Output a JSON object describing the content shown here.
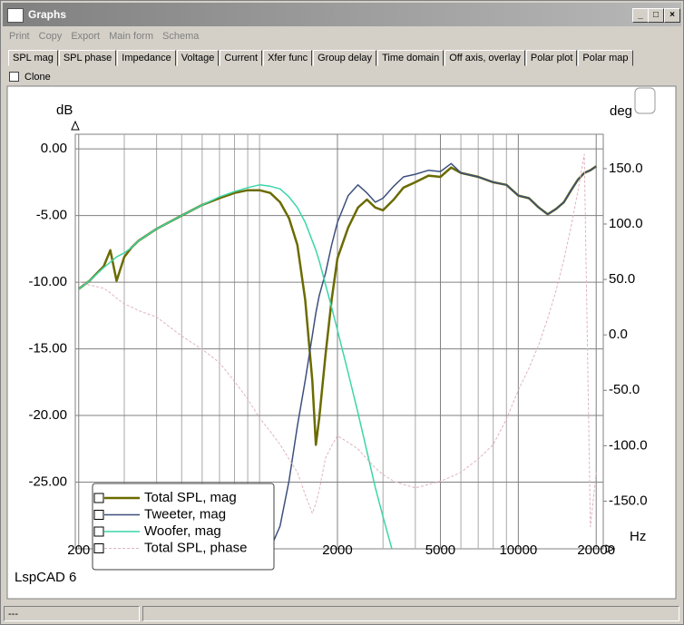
{
  "window": {
    "title": "Graphs",
    "menu": [
      "Print",
      "Copy",
      "Export",
      "Main form",
      "Schema"
    ],
    "tabs": [
      "SPL mag",
      "SPL phase",
      "Impedance",
      "Voltage",
      "Current",
      "Xfer func",
      "Group delay",
      "Time domain",
      "Off axis, overlay",
      "Polar plot",
      "Polar map"
    ],
    "clone": "Clone",
    "footer": "LspCAD 6",
    "status": "---"
  },
  "chart_data": {
    "type": "line",
    "ylabel": "dB",
    "y2label": "deg",
    "xlabel": "Hz",
    "xscale": "log",
    "xlim": [
      194,
      21300
    ],
    "xticks": [
      200,
      2000,
      5000,
      10000,
      20000
    ],
    "x_minor_grid": [
      300,
      400,
      500,
      600,
      700,
      800,
      900,
      1000,
      3000,
      4000,
      6000,
      7000,
      8000,
      9000
    ],
    "ylim": [
      -30,
      1.1
    ],
    "yticks": [
      {
        "value": 0,
        "label": "0.00"
      },
      {
        "value": -5,
        "label": "-5.00"
      },
      {
        "value": -10,
        "label": "-10.00"
      },
      {
        "value": -15,
        "label": "-15.00"
      },
      {
        "value": -20,
        "label": "-20.00"
      },
      {
        "value": -25,
        "label": "-25.00"
      }
    ],
    "y2lim": [
      -193,
      181
    ],
    "y2ticks": [
      {
        "value": 150,
        "label": "150.0"
      },
      {
        "value": 100,
        "label": "100.0"
      },
      {
        "value": 50,
        "label": "50.0"
      },
      {
        "value": 0,
        "label": "0.0"
      },
      {
        "value": -50,
        "label": "-50.0"
      },
      {
        "value": -100,
        "label": "-100.0"
      },
      {
        "value": -150,
        "label": "-150.0"
      }
    ],
    "grid": true,
    "legend": "lower left",
    "x": [
      200,
      220,
      250,
      265,
      280,
      300,
      320,
      340,
      400,
      500,
      600,
      700,
      800,
      900,
      1000,
      1100,
      1200,
      1300,
      1400,
      1500,
      1600,
      1650,
      1700,
      1800,
      1900,
      2000,
      2200,
      2400,
      2600,
      2800,
      3000,
      3300,
      3600,
      4000,
      4500,
      5000,
      5500,
      6000,
      7000,
      8000,
      9000,
      10000,
      11000,
      12000,
      13000,
      14000,
      15000,
      16000,
      17000,
      18000,
      19000,
      20000
    ],
    "series": [
      {
        "name": "Total SPL, mag",
        "color": "#6b6b00",
        "width": 2.5,
        "values": [
          -10.5,
          -9.9,
          -8.8,
          -7.6,
          -9.9,
          -8.1,
          -7.4,
          -6.9,
          -6.0,
          -5.0,
          -4.2,
          -3.7,
          -3.3,
          -3.1,
          -3.1,
          -3.3,
          -4.0,
          -5.2,
          -7.2,
          -11.3,
          -17.4,
          -22.2,
          -20.2,
          -15.4,
          -11.3,
          -8.2,
          -5.9,
          -4.4,
          -3.8,
          -4.4,
          -4.6,
          -3.8,
          -2.9,
          -2.5,
          -2.0,
          -2.1,
          -1.4,
          -1.8,
          -2.1,
          -2.5,
          -2.7,
          -3.5,
          -3.7,
          -4.4,
          -4.9,
          -4.5,
          -4.0,
          -3.1,
          -2.3,
          -1.8,
          -1.6,
          -1.3
        ]
      },
      {
        "name": "Tweeter, mag",
        "color": "#3d4f7c",
        "width": 1.5,
        "values": [
          null,
          null,
          null,
          null,
          null,
          null,
          null,
          null,
          null,
          null,
          null,
          null,
          null,
          null,
          null,
          -30.0,
          -28.3,
          -24.9,
          -20.8,
          -17.4,
          -14.0,
          -12.3,
          -11.0,
          -9.3,
          -7.2,
          -5.5,
          -3.5,
          -2.7,
          -3.3,
          -4.0,
          -3.7,
          -2.8,
          -2.1,
          -1.9,
          -1.6,
          -1.7,
          -1.1,
          -1.8,
          -2.1,
          -2.5,
          -2.7,
          -3.5,
          -3.7,
          -4.4,
          -4.9,
          -4.5,
          -4.0,
          -3.1,
          -2.3,
          -1.8,
          -1.6,
          -1.3
        ]
      },
      {
        "name": "Woofer, mag",
        "color": "#3cd6a8",
        "width": 1.5,
        "values": [
          -10.5,
          -9.9,
          -8.9,
          -8.5,
          -8.1,
          -7.8,
          -7.4,
          -6.9,
          -6.0,
          -5.0,
          -4.2,
          -3.6,
          -3.2,
          -2.9,
          -2.7,
          -2.8,
          -3.0,
          -3.6,
          -4.4,
          -5.5,
          -6.9,
          -7.6,
          -8.4,
          -10.2,
          -11.9,
          -13.6,
          -16.8,
          -19.8,
          -22.7,
          -25.4,
          -27.6,
          -30.5,
          null,
          null,
          null,
          null,
          null,
          null,
          null,
          null,
          null,
          null,
          null,
          null,
          null,
          null,
          null,
          null,
          null,
          null,
          null,
          null
        ]
      },
      {
        "name": "Total SPL, phase",
        "color": "#dfb3bd",
        "width": 1,
        "dash": true,
        "axis": "y2",
        "values": [
          48,
          45,
          42,
          38,
          33,
          28,
          25,
          22,
          16,
          -1,
          -13,
          -25,
          -42,
          -58,
          -75,
          -87,
          -99,
          -112,
          -124,
          -144,
          -161,
          -152,
          -140,
          -111,
          -100,
          -91,
          -97,
          -103,
          -112,
          -120,
          -126,
          -132,
          -135,
          -138,
          -135,
          -132,
          -128,
          -124,
          -112,
          -99,
          -76,
          -50,
          -30,
          -9,
          15,
          40,
          68,
          98,
          130,
          163,
          -173,
          -124
        ]
      }
    ]
  }
}
